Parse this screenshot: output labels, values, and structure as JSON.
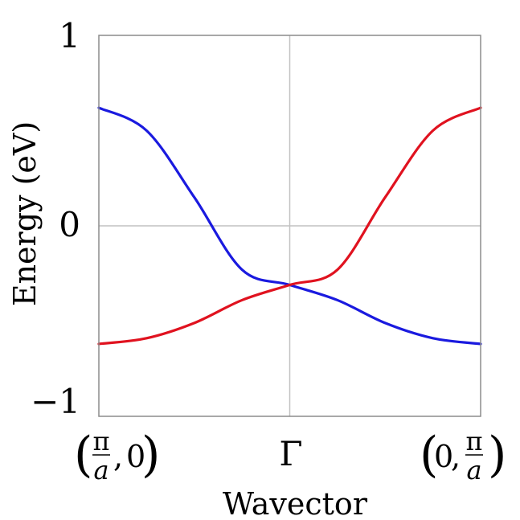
{
  "chart_data": {
    "type": "line",
    "xlabel": "Wavector",
    "ylabel": "Energy (eV)",
    "ylim": [
      -1,
      1
    ],
    "y_ticks": [
      {
        "value": 1,
        "label": "1"
      },
      {
        "value": 0,
        "label": "0"
      },
      {
        "value": -1,
        "label": "−1"
      }
    ],
    "x_ticks": [
      {
        "position": "left",
        "label": "(π/a, 0)"
      },
      {
        "position": "center",
        "label": "Γ"
      },
      {
        "position": "right",
        "label": "(0, π/a)"
      }
    ],
    "grid": true,
    "x": [
      -1,
      -0.75,
      -0.5,
      -0.25,
      0,
      0.25,
      0.5,
      0.75,
      1
    ],
    "series": [
      {
        "color": "#1a1adf",
        "values": [
          0.62,
          0.5,
          0.15,
          -0.23,
          -0.31,
          -0.39,
          -0.51,
          -0.59,
          -0.62
        ]
      },
      {
        "color": "#e0121f",
        "values": [
          -0.62,
          -0.59,
          -0.51,
          -0.39,
          -0.31,
          -0.23,
          0.15,
          0.5,
          0.62
        ]
      }
    ]
  }
}
